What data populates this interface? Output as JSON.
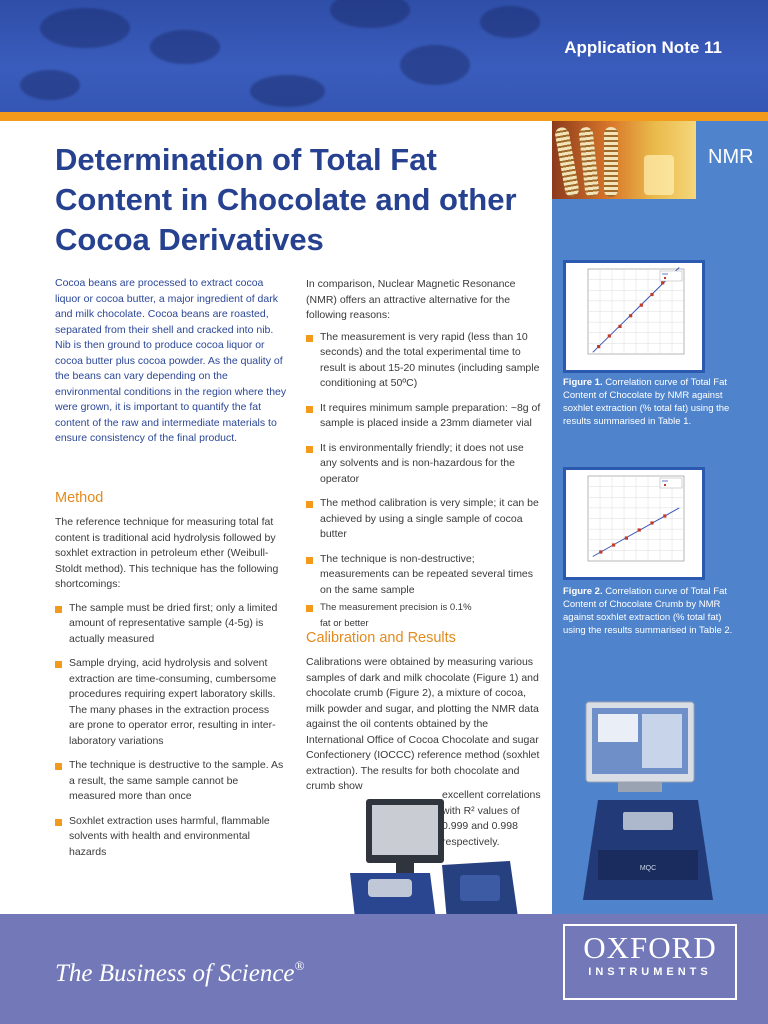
{
  "header": {
    "app_note": "Application Note 11"
  },
  "title": "Determination of Total Fat Content in Chocolate and other Cocoa Derivatives",
  "side_label": "NMR",
  "intro": "Cocoa beans are processed to extract cocoa liquor or cocoa butter, a major ingredient of dark and milk chocolate. Cocoa beans are roasted, separated from their shell and cracked into nib. Nib is then ground to produce cocoa liquor or cocoa butter plus cocoa powder. As the quality of the beans can vary depending on the environmental conditions in the region where they were grown, it is important to quantify the fat content of the raw and intermediate materials to ensure consistency of the final product.",
  "method": {
    "heading": "Method",
    "text": "The reference technique for measuring total fat content is traditional acid hydrolysis followed by soxhlet extraction in petroleum ether (Weibull-Stoldt method). This technique has the following shortcomings:",
    "items": [
      "The sample must be dried first; only a limited amount of representative sample (4-5g) is actually measured",
      "Sample drying, acid hydrolysis and solvent extraction are time-consuming, cumbersome procedures requiring expert laboratory skills. The many phases in the extraction process are prone to operator error, resulting in inter-laboratory variations",
      "The technique is destructive to the sample. As a result, the same sample cannot be measured more than once",
      "Soxhlet extraction uses harmful, flammable solvents with health and environmental hazards"
    ]
  },
  "nmr": {
    "text": "In comparison, Nuclear Magnetic Resonance (NMR) offers an attractive alternative for the following reasons:",
    "items": [
      "The measurement is very rapid (less than 10 seconds) and the total experimental time to result is about 15-20 minutes (including sample conditioning at 50ºC)",
      "It requires minimum sample preparation: ~8g of sample is placed inside a 23mm diameter vial",
      "It is environmentally friendly; it does not use any solvents and is non-hazardous for the operator",
      "The method calibration is very simple; it can be achieved by using a single sample of cocoa butter",
      "The technique is non-destructive; measurements can be repeated several times on the same sample",
      "The measurement precision is 0.1% fat or better"
    ]
  },
  "calibration": {
    "heading": "Calibration and Results",
    "text": "Calibrations were obtained by measuring various samples of dark and milk chocolate (Figure 1) and chocolate crumb (Figure 2), a mixture of cocoa, milk powder and sugar, and plotting the NMR data against the oil contents obtained by the International Office of Cocoa Chocolate and sugar Confectionery (IOCCC) reference method (soxhlet extraction). The results for both chocolate and crumb show",
    "text_wrap": "excellent correlations with R² values of 0.999 and 0.998 respectively."
  },
  "figures": [
    {
      "label": "Figure 1.",
      "caption": "Correlation curve of Total Fat Content of Chocolate by NMR against soxhlet extraction (% total fat) using the results summarised in Table 1."
    },
    {
      "label": "Figure 2.",
      "caption": "Correlation curve of Total Fat Content of Chocolate Crumb by NMR against soxhlet extraction (% total fat) using the results summarised in Table 2."
    }
  ],
  "chart_data": [
    {
      "type": "scatter",
      "x": [
        28,
        30,
        32,
        34,
        36,
        38,
        40,
        42
      ],
      "y": [
        285,
        335,
        380,
        430,
        480,
        530,
        585,
        630
      ],
      "xlim": [
        26,
        44
      ],
      "ylim": [
        250,
        650
      ],
      "grid": true,
      "legend": "top-right"
    },
    {
      "type": "scatter",
      "x": [
        27,
        29,
        31,
        33,
        35,
        37
      ],
      "y": [
        4400,
        5100,
        5800,
        6600,
        7300,
        8000
      ],
      "xlim": [
        25,
        40
      ],
      "ylim": [
        3500,
        12000
      ],
      "grid": true,
      "legend": "top-right"
    }
  ],
  "footer": {
    "tagline": "The Business of Science",
    "tagline_mark": "®",
    "logo_top": "OXFORD",
    "logo_bottom": "INSTRUMENTS"
  }
}
